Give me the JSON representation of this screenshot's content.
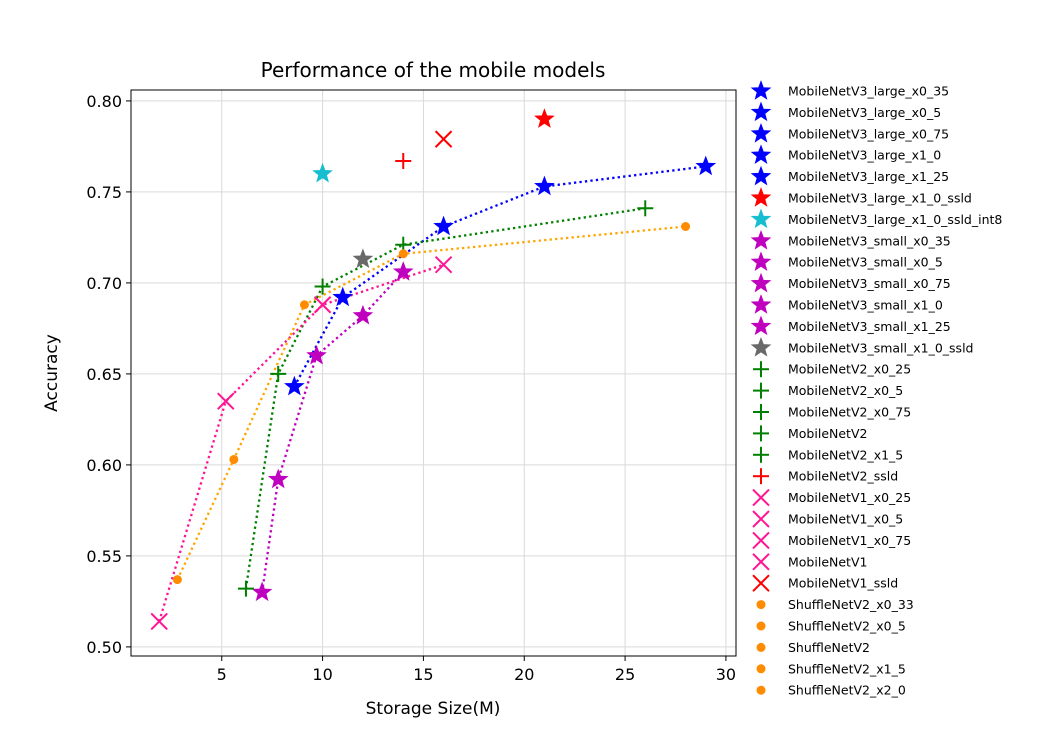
{
  "chart_data": {
    "type": "scatter",
    "title": "Performance of the mobile models",
    "xlabel": "Storage Size(M)",
    "ylabel": "Accuracy",
    "xlim": [
      0.5,
      30.5
    ],
    "ylim": [
      0.495,
      0.806
    ],
    "xticks": [
      5,
      10,
      15,
      20,
      25,
      30
    ],
    "yticks": [
      "0.50",
      "0.55",
      "0.60",
      "0.65",
      "0.70",
      "0.75",
      "0.80"
    ],
    "grid": true,
    "legend_position": "outside-right",
    "series": [
      {
        "name": "MobileNetV3_large_x0_35",
        "marker": "star",
        "color": "#0000ff",
        "x": 8.6,
        "y": 0.643
      },
      {
        "name": "MobileNetV3_large_x0_5",
        "marker": "star",
        "color": "#0000ff",
        "x": 11.0,
        "y": 0.692
      },
      {
        "name": "MobileNetV3_large_x0_75",
        "marker": "star",
        "color": "#0000ff",
        "x": 16.0,
        "y": 0.731
      },
      {
        "name": "MobileNetV3_large_x1_0",
        "marker": "star",
        "color": "#0000ff",
        "x": 21.0,
        "y": 0.753
      },
      {
        "name": "MobileNetV3_large_x1_25",
        "marker": "star",
        "color": "#0000ff",
        "x": 29.0,
        "y": 0.764
      },
      {
        "name": "MobileNetV3_large_x1_0_ssld",
        "marker": "star",
        "color": "#ff0000",
        "x": 21.0,
        "y": 0.79
      },
      {
        "name": "MobileNetV3_large_x1_0_ssld_int8",
        "marker": "star",
        "color": "#17becf",
        "x": 10.0,
        "y": 0.76
      },
      {
        "name": "MobileNetV3_small_x0_35",
        "marker": "star",
        "color": "#bf00bf",
        "x": 7.0,
        "y": 0.53
      },
      {
        "name": "MobileNetV3_small_x0_5",
        "marker": "star",
        "color": "#bf00bf",
        "x": 7.8,
        "y": 0.592
      },
      {
        "name": "MobileNetV3_small_x0_75",
        "marker": "star",
        "color": "#bf00bf",
        "x": 9.7,
        "y": 0.66
      },
      {
        "name": "MobileNetV3_small_x1_0",
        "marker": "star",
        "color": "#bf00bf",
        "x": 12.0,
        "y": 0.682
      },
      {
        "name": "MobileNetV3_small_x1_25",
        "marker": "star",
        "color": "#bf00bf",
        "x": 14.0,
        "y": 0.706
      },
      {
        "name": "MobileNetV3_small_x1_0_ssld",
        "marker": "star",
        "color": "#696969",
        "x": 12.0,
        "y": 0.713
      },
      {
        "name": "MobileNetV2_x0_25",
        "marker": "plus",
        "color": "#008000",
        "x": 6.2,
        "y": 0.532
      },
      {
        "name": "MobileNetV2_x0_5",
        "marker": "plus",
        "color": "#008000",
        "x": 7.8,
        "y": 0.65
      },
      {
        "name": "MobileNetV2_x0_75",
        "marker": "plus",
        "color": "#008000",
        "x": 10.0,
        "y": 0.698
      },
      {
        "name": "MobileNetV2",
        "marker": "plus",
        "color": "#008000",
        "x": 14.0,
        "y": 0.721
      },
      {
        "name": "MobileNetV2_x1_5",
        "marker": "plus",
        "color": "#008000",
        "x": 26.0,
        "y": 0.741
      },
      {
        "name": "MobileNetV2_ssld",
        "marker": "plus",
        "color": "#ff0000",
        "x": 14.0,
        "y": 0.767
      },
      {
        "name": "MobileNetV1_x0_25",
        "marker": "x",
        "color": "#ff1493",
        "x": 1.9,
        "y": 0.514
      },
      {
        "name": "MobileNetV1_x0_5",
        "marker": "x",
        "color": "#ff1493",
        "x": 5.2,
        "y": 0.635
      },
      {
        "name": "MobileNetV1_x0_75",
        "marker": "x",
        "color": "#ff1493",
        "x": 10.0,
        "y": 0.688
      },
      {
        "name": "MobileNetV1",
        "marker": "x",
        "color": "#ff1493",
        "x": 16.0,
        "y": 0.71
      },
      {
        "name": "MobileNetV1_ssld",
        "marker": "x",
        "color": "#ff0000",
        "x": 16.0,
        "y": 0.779
      },
      {
        "name": "ShuffleNetV2_x0_33",
        "marker": "dot",
        "color": "#ff8c00",
        "x": 2.8,
        "y": 0.537
      },
      {
        "name": "ShuffleNetV2_x0_5",
        "marker": "dot",
        "color": "#ff8c00",
        "x": 5.6,
        "y": 0.603
      },
      {
        "name": "ShuffleNetV2",
        "marker": "dot",
        "color": "#ff8c00",
        "x": 9.1,
        "y": 0.688
      },
      {
        "name": "ShuffleNetV2_x1_5",
        "marker": "dot",
        "color": "#ff8c00",
        "x": 14.0,
        "y": 0.716
      },
      {
        "name": "ShuffleNetV2_x2_0",
        "marker": "dot",
        "color": "#ff8c00",
        "x": 28.0,
        "y": 0.731
      }
    ],
    "connecting_lines": [
      {
        "color": "#0000ff",
        "style": "dotted",
        "members": [
          "MobileNetV3_large_x0_35",
          "MobileNetV3_large_x0_5",
          "MobileNetV3_large_x0_75",
          "MobileNetV3_large_x1_0",
          "MobileNetV3_large_x1_25"
        ]
      },
      {
        "color": "#bf00bf",
        "style": "dotted",
        "members": [
          "MobileNetV3_small_x0_35",
          "MobileNetV3_small_x0_5",
          "MobileNetV3_small_x0_75",
          "MobileNetV3_small_x1_0",
          "MobileNetV3_small_x1_25"
        ]
      },
      {
        "color": "#008000",
        "style": "dotted",
        "members": [
          "MobileNetV2_x0_25",
          "MobileNetV2_x0_5",
          "MobileNetV2_x0_75",
          "MobileNetV2",
          "MobileNetV2_x1_5"
        ]
      },
      {
        "color": "#ff1493",
        "style": "dotted",
        "members": [
          "MobileNetV1_x0_25",
          "MobileNetV1_x0_5",
          "MobileNetV1_x0_75",
          "MobileNetV1"
        ]
      },
      {
        "color": "#ffa500",
        "style": "dotted",
        "members": [
          "ShuffleNetV2_x0_33",
          "ShuffleNetV2_x0_5",
          "ShuffleNetV2",
          "ShuffleNetV2_x1_5",
          "ShuffleNetV2_x2_0"
        ]
      }
    ]
  }
}
